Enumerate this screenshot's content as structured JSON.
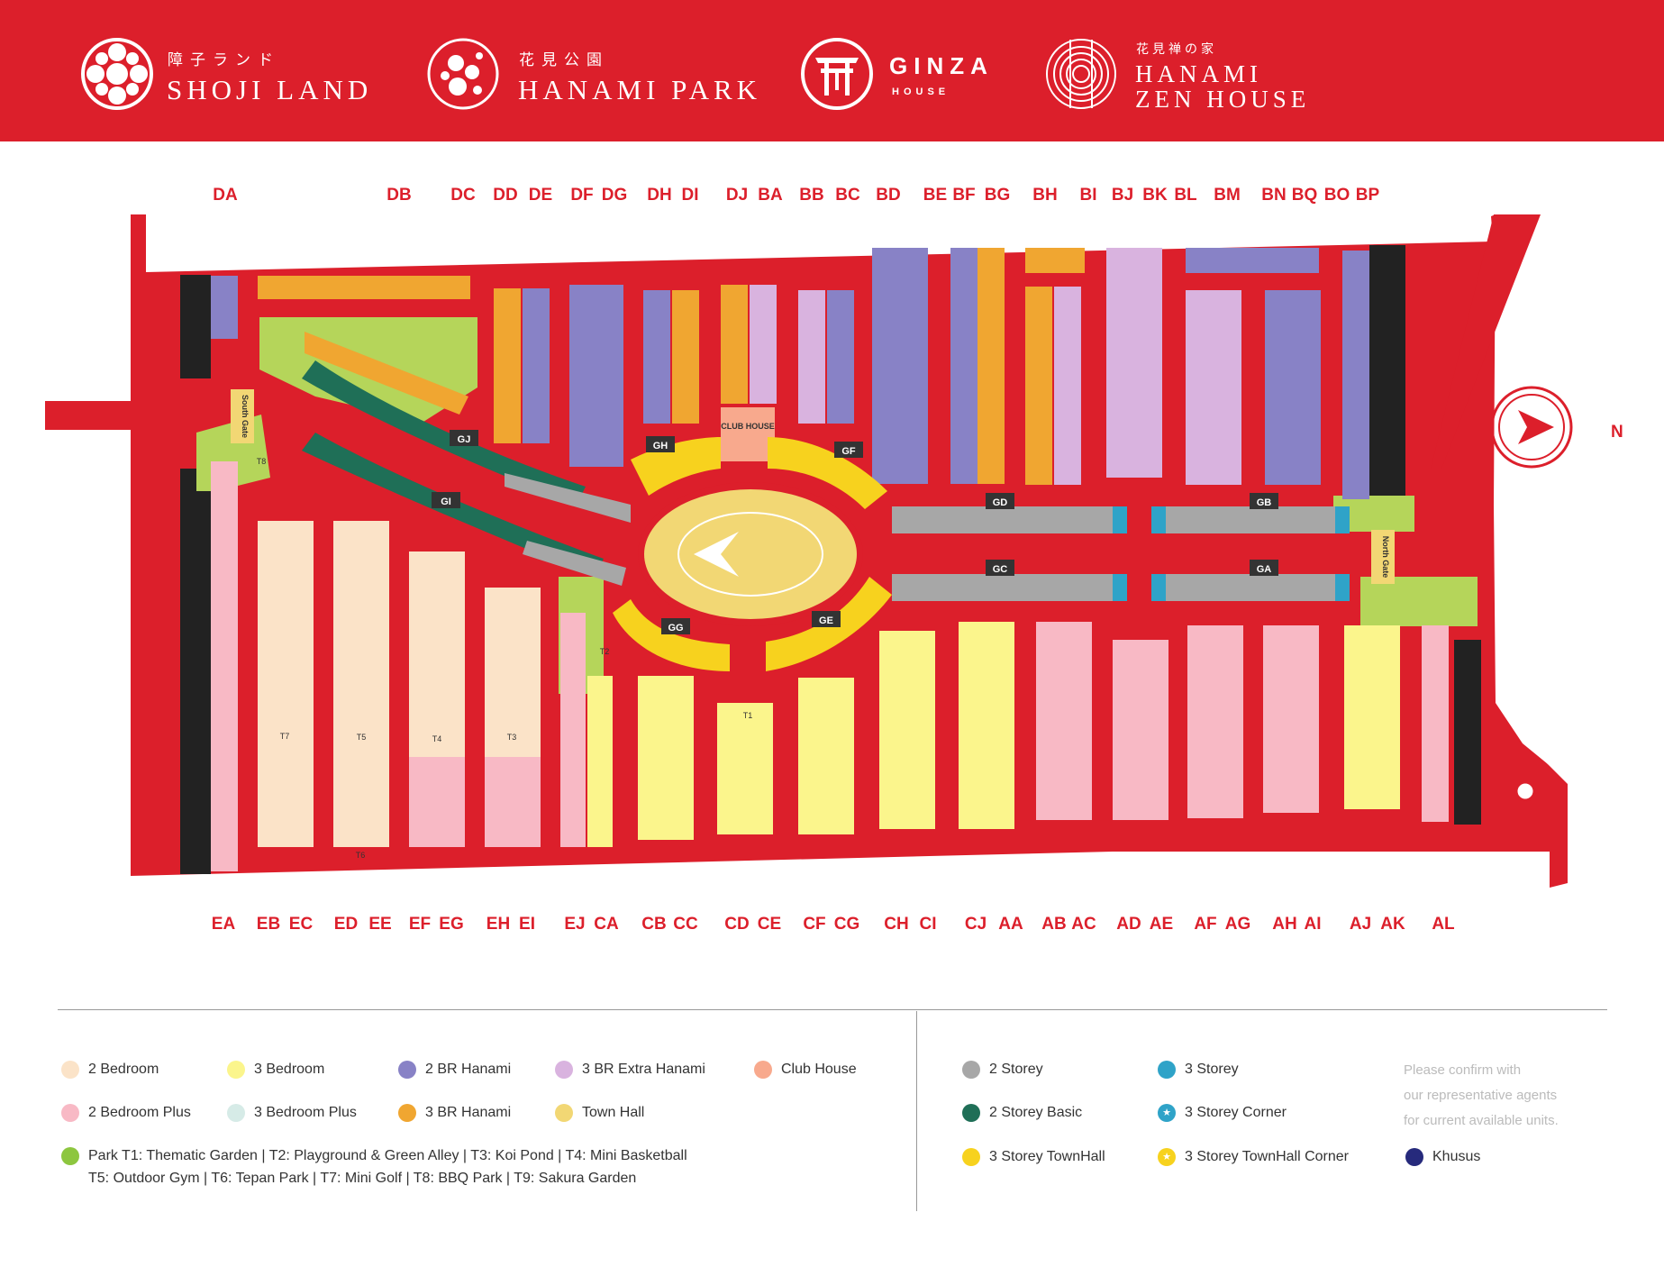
{
  "brands": [
    {
      "jp": "障子ランド",
      "en": "SHOJI LAND"
    },
    {
      "jp": "花見公園",
      "en": "HANAMI PARK"
    },
    {
      "en": "GINZA",
      "sub": "HOUSE"
    },
    {
      "jp": "花見禅の家",
      "en_line1": "HANAMI",
      "en_line2": "ZEN HOUSE"
    }
  ],
  "compass_label": "N",
  "gates": {
    "south": "South Gate",
    "north": "North Gate"
  },
  "club_house": "CLUB HOUSE",
  "top_rows": [
    "DA",
    "DB",
    "DC",
    "DD",
    "DE",
    "DF",
    "DG",
    "DH",
    "DI",
    "DJ",
    "BA",
    "BB",
    "BC",
    "BD",
    "BE",
    "BF",
    "BG",
    "BH",
    "BI",
    "BJ",
    "BK",
    "BL",
    "BM",
    "BN",
    "BQ",
    "BO",
    "BP"
  ],
  "bottom_rows": [
    "EA",
    "EB",
    "EC",
    "ED",
    "EE",
    "EF",
    "EG",
    "EH",
    "EI",
    "EJ",
    "CA",
    "CB",
    "CC",
    "CD",
    "CE",
    "CF",
    "CG",
    "CH",
    "CI",
    "CJ",
    "AA",
    "AB",
    "AC",
    "AD",
    "AE",
    "AF",
    "AG",
    "AH",
    "AI",
    "AJ",
    "AK",
    "AL"
  ],
  "ring_rows": [
    "GJ",
    "GI",
    "GH",
    "GF",
    "GG",
    "GE"
  ],
  "street_rows": [
    "GD",
    "GB",
    "GC",
    "GA"
  ],
  "parks_on_map": [
    "T1",
    "T2",
    "T3",
    "T4",
    "T5",
    "T6",
    "T7",
    "T8"
  ],
  "legend": {
    "left": [
      {
        "label": "2 Bedroom",
        "color": "#fbe3c8"
      },
      {
        "label": "3 Bedroom",
        "color": "#fbf58c"
      },
      {
        "label": "2 BR Hanami",
        "color": "#8882c6"
      },
      {
        "label": "3 BR Extra Hanami",
        "color": "#d9b3df"
      },
      {
        "label": "Club House",
        "color": "#f8a98d"
      },
      {
        "label": "2 Bedroom Plus",
        "color": "#f8b9c5"
      },
      {
        "label": "3 Bedroom Plus",
        "color": "#d6ebe7"
      },
      {
        "label": "3 BR Hanami",
        "color": "#f0a631"
      },
      {
        "label": "Town Hall",
        "color": "#f2d774"
      }
    ],
    "right": [
      {
        "label": "2 Storey",
        "color": "#a7a7a7"
      },
      {
        "label": "3 Storey",
        "color": "#2fa3c8"
      },
      {
        "label": "2 Storey Basic",
        "color": "#1f6f57"
      },
      {
        "label": "3 Storey Corner",
        "color": "#2fa3c8",
        "star": true
      },
      {
        "label": "3 Storey TownHall",
        "color": "#f7d21e"
      },
      {
        "label": "3 Storey TownHall Corner",
        "color": "#f7d21e",
        "star": true
      },
      {
        "label": "Khusus",
        "color": "#262a7c"
      }
    ],
    "parks_color": "#8dc63f",
    "parks_line1": "Park T1: Thematic Garden  |  T2: Playground & Green Alley  |  T3: Koi Pond  |  T4: Mini Basketball",
    "parks_line2": "T5: Outdoor Gym  |  T6: Tepan Park  |  T7: Mini Golf  |  T8: BBQ Park  |  T9: Sakura Garden",
    "confirm_line1": "Please confirm with",
    "confirm_line2": "our representative agents",
    "confirm_line3": "for current available units."
  }
}
